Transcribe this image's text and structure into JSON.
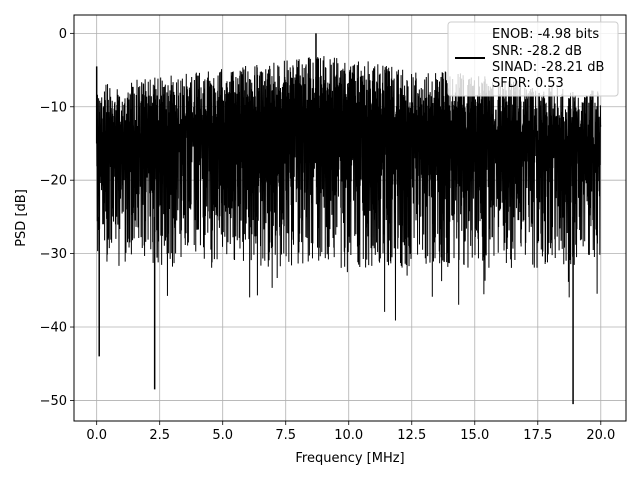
{
  "chart_data": {
    "type": "line",
    "title": "",
    "xlabel": "Frequency [MHz]",
    "ylabel": "PSD [dB]",
    "xlim": [
      -0.9,
      21.0
    ],
    "ylim": [
      -52.8,
      2.5
    ],
    "x_ticks": [
      0.0,
      2.5,
      5.0,
      7.5,
      10.0,
      12.5,
      15.0,
      17.5,
      20.0
    ],
    "x_tick_labels": [
      "0.0",
      "2.5",
      "5.0",
      "7.5",
      "10.0",
      "12.5",
      "15.0",
      "17.5",
      "20.0"
    ],
    "y_ticks": [
      0,
      -10,
      -20,
      -30,
      -40,
      -50
    ],
    "y_tick_labels": [
      "0",
      "−10",
      "−20",
      "−30",
      "−40",
      "−50"
    ],
    "grid": true,
    "legend_position": "top-right",
    "series": [
      {
        "color": "#000000",
        "x_range": [
          0.0,
          20.0
        ],
        "typical_range_db": [
          -32,
          -3
        ],
        "notable_points": [
          {
            "x": 0.0,
            "y": -4.5
          },
          {
            "x": 0.1,
            "y": -44
          },
          {
            "x": 2.3,
            "y": -48.5
          },
          {
            "x": 8.7,
            "y": 0.0
          },
          {
            "x": 18.9,
            "y": -50.5
          }
        ]
      }
    ],
    "legend_lines": [
      "ENOB: -4.98 bits",
      "SNR: -28.2 dB",
      "SINAD: -28.21 dB",
      "SFDR: 0.53"
    ]
  }
}
